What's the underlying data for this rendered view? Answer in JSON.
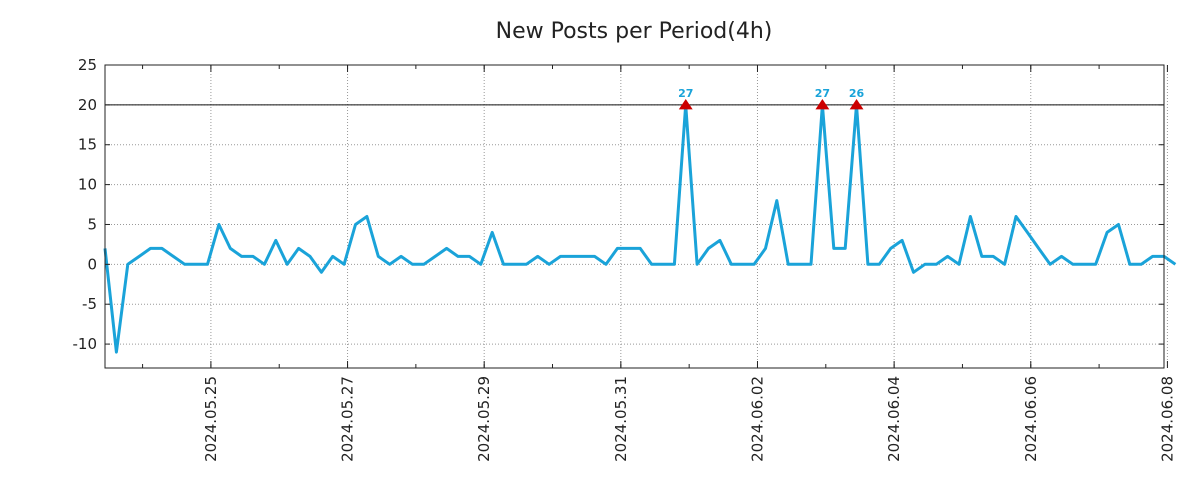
{
  "chart_data": {
    "type": "line",
    "title": "New Posts per Period(4h)",
    "xlabel": "",
    "ylabel": "",
    "period_hours": 4,
    "x_start_day": -0.55,
    "x_range_days": [
      -0.55,
      14.95
    ],
    "ylim": [
      -13,
      25
    ],
    "yticks": [
      -10,
      -5,
      0,
      5,
      10,
      15,
      20,
      25
    ],
    "ytick_labels": [
      "-10",
      "-5",
      "0",
      "5",
      "10",
      "15",
      "20",
      "25"
    ],
    "xtick_days": [
      1,
      3,
      5,
      7,
      9,
      11,
      13,
      15
    ],
    "xtick_labels": [
      "2024.05.25",
      "2024.05.27",
      "2024.05.29",
      "2024.05.31",
      "2024.06.02",
      "2024.06.04",
      "2024.06.06",
      "2024.06.08"
    ],
    "cap_line": 20,
    "grid": true,
    "line_color": "#1aa3d9",
    "marker_color": "#cc0000",
    "series": [
      {
        "name": "New Posts",
        "values": [
          2,
          -11,
          0,
          1,
          2,
          2,
          1,
          0,
          0,
          0,
          5,
          2,
          1,
          1,
          0,
          3,
          0,
          2,
          1,
          -1,
          1,
          0,
          5,
          6,
          1,
          0,
          1,
          0,
          0,
          1,
          2,
          1,
          1,
          0,
          4,
          0,
          0,
          0,
          1,
          0,
          1,
          1,
          1,
          1,
          0,
          2,
          2,
          2,
          0,
          0,
          0,
          20,
          0,
          2,
          3,
          0,
          0,
          0,
          2,
          8,
          0,
          0,
          0,
          20,
          2,
          2,
          20,
          0,
          0,
          2,
          3,
          -1,
          0,
          0,
          1,
          0,
          6,
          1,
          1,
          0,
          6,
          4,
          2,
          0,
          1,
          0,
          0,
          0,
          4,
          5,
          0,
          0,
          1,
          1,
          0
        ]
      }
    ],
    "peaks": [
      {
        "index": 51,
        "label": "27"
      },
      {
        "index": 63,
        "label": "27"
      },
      {
        "index": 66,
        "label": "26"
      }
    ]
  }
}
